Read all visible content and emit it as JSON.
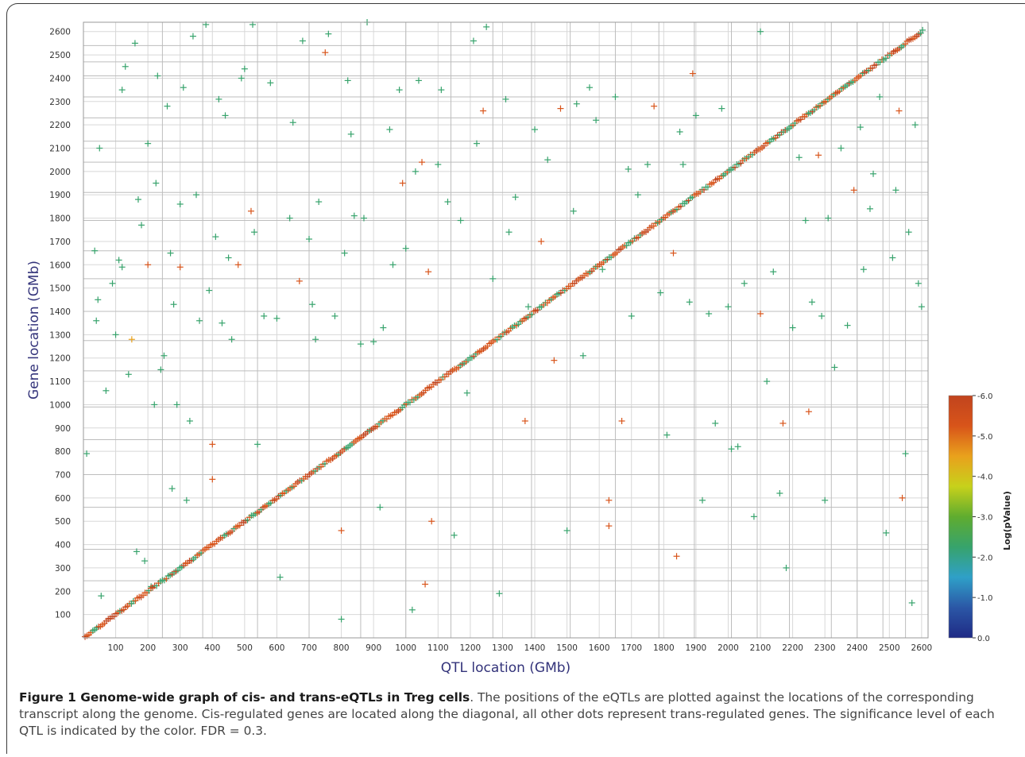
{
  "chart_data": {
    "type": "scatter",
    "xlabel": "QTL location (GMb)",
    "ylabel": "Gene location (GMb)",
    "xlim": [
      0,
      2620
    ],
    "ylim": [
      0,
      2640
    ],
    "x_ticks": [
      100,
      200,
      300,
      400,
      500,
      600,
      700,
      800,
      900,
      1000,
      1100,
      1200,
      1300,
      1400,
      1500,
      1600,
      1700,
      1800,
      1900,
      2000,
      2100,
      2200,
      2300,
      2400,
      2500,
      2600
    ],
    "y_ticks": [
      100,
      200,
      300,
      400,
      500,
      600,
      700,
      800,
      900,
      1000,
      1100,
      1200,
      1300,
      1400,
      1500,
      1600,
      1700,
      1800,
      1900,
      2000,
      2100,
      2200,
      2300,
      2400,
      2500,
      2600
    ],
    "chromosome_boundaries_x": [
      245,
      370,
      540,
      700,
      860,
      1000,
      1140,
      1270,
      1390,
      1510,
      1650,
      1785,
      1895,
      2010,
      2090,
      2190,
      2320,
      2400,
      2480,
      2550
    ],
    "chromosome_boundaries_y": [
      245,
      380,
      560,
      700,
      850,
      990,
      1145,
      1275,
      1400,
      1540,
      1660,
      1790,
      1910,
      2040,
      2130,
      2230,
      2320,
      2410,
      2470,
      2540
    ],
    "grid": true,
    "marker": "+",
    "legend": "none",
    "colorbar": {
      "label": "Log(pValue)",
      "ticks": [
        "-6.0",
        "-5.0",
        "-4.0",
        "-3.0",
        "-2.0",
        "-1.0",
        "0.0"
      ],
      "range": [
        -6.0,
        0.0
      ],
      "colors": [
        "#c1441e",
        "#d8541a",
        "#e9a11c",
        "#c7d11b",
        "#5fac2f",
        "#37a36c",
        "#2fa0c8",
        "#2b57a6",
        "#1f2a85"
      ]
    },
    "diagonal_cis": {
      "description": "cis-eQTLs along diagonal y = x",
      "x_range": [
        5,
        2605
      ],
      "typical_log_pvalue": -5.5
    },
    "trans_points": [
      [
        10,
        790,
        -2.4
      ],
      [
        35,
        1660,
        -2.5
      ],
      [
        45,
        1450,
        -2.4
      ],
      [
        40,
        1360,
        -2.4
      ],
      [
        50,
        2100,
        -2.3
      ],
      [
        55,
        180,
        -2.5
      ],
      [
        70,
        1060,
        -2.4
      ],
      [
        90,
        1520,
        -2.5
      ],
      [
        100,
        1300,
        -2.4
      ],
      [
        110,
        1620,
        -2.5
      ],
      [
        120,
        1590,
        -2.4
      ],
      [
        120,
        2350,
        -2.5
      ],
      [
        130,
        2450,
        -2.4
      ],
      [
        140,
        1130,
        -2.4
      ],
      [
        150,
        1280,
        -4.8
      ],
      [
        160,
        2550,
        -2.6
      ],
      [
        165,
        370,
        -2.5
      ],
      [
        170,
        1880,
        -2.4
      ],
      [
        180,
        1770,
        -2.5
      ],
      [
        190,
        330,
        -2.4
      ],
      [
        200,
        1600,
        -5.2
      ],
      [
        200,
        2120,
        -2.4
      ],
      [
        210,
        220,
        -2.6
      ],
      [
        220,
        1000,
        -2.5
      ],
      [
        225,
        1950,
        -2.5
      ],
      [
        230,
        2410,
        -2.4
      ],
      [
        240,
        1150,
        -2.4
      ],
      [
        250,
        1210,
        -2.5
      ],
      [
        260,
        2280,
        -2.5
      ],
      [
        270,
        1650,
        -2.4
      ],
      [
        275,
        640,
        -2.5
      ],
      [
        280,
        1430,
        -2.5
      ],
      [
        290,
        1000,
        -2.4
      ],
      [
        300,
        1860,
        -2.5
      ],
      [
        300,
        1590,
        -5.2
      ],
      [
        310,
        2360,
        -2.4
      ],
      [
        320,
        590,
        -2.5
      ],
      [
        330,
        930,
        -2.4
      ],
      [
        340,
        2580,
        -2.4
      ],
      [
        350,
        1900,
        -2.5
      ],
      [
        360,
        1360,
        -2.4
      ],
      [
        380,
        2630,
        -2.4
      ],
      [
        390,
        1490,
        -2.5
      ],
      [
        400,
        680,
        -5.3
      ],
      [
        400,
        830,
        -5.0
      ],
      [
        410,
        1720,
        -2.4
      ],
      [
        420,
        2310,
        -2.4
      ],
      [
        430,
        1350,
        -2.5
      ],
      [
        440,
        2240,
        -2.4
      ],
      [
        450,
        1630,
        -2.4
      ],
      [
        460,
        1280,
        -2.4
      ],
      [
        480,
        1600,
        -5.3
      ],
      [
        490,
        2400,
        -2.4
      ],
      [
        500,
        2440,
        -2.4
      ],
      [
        520,
        1830,
        -5.4
      ],
      [
        525,
        2630,
        -2.5
      ],
      [
        530,
        1740,
        -2.4
      ],
      [
        540,
        830,
        -2.5
      ],
      [
        560,
        1380,
        -2.5
      ],
      [
        580,
        2380,
        -2.4
      ],
      [
        600,
        1370,
        -2.5
      ],
      [
        610,
        260,
        -2.4
      ],
      [
        640,
        1800,
        -2.4
      ],
      [
        650,
        2210,
        -2.5
      ],
      [
        670,
        1530,
        -5.3
      ],
      [
        680,
        2560,
        -2.4
      ],
      [
        700,
        1710,
        -2.5
      ],
      [
        710,
        1430,
        -2.4
      ],
      [
        720,
        1280,
        -2.4
      ],
      [
        730,
        1870,
        -2.5
      ],
      [
        750,
        2510,
        -5.4
      ],
      [
        760,
        2590,
        -2.6
      ],
      [
        780,
        1380,
        -2.4
      ],
      [
        800,
        80,
        -2.5
      ],
      [
        800,
        460,
        -5.3
      ],
      [
        810,
        1650,
        -2.4
      ],
      [
        820,
        2390,
        -2.4
      ],
      [
        830,
        2160,
        -2.5
      ],
      [
        840,
        1810,
        -2.4
      ],
      [
        860,
        1260,
        -2.5
      ],
      [
        870,
        1800,
        -2.5
      ],
      [
        880,
        2640,
        -2.4
      ],
      [
        900,
        1270,
        -2.4
      ],
      [
        920,
        560,
        -2.4
      ],
      [
        930,
        1330,
        -2.4
      ],
      [
        950,
        2180,
        -2.5
      ],
      [
        960,
        1600,
        -2.4
      ],
      [
        980,
        2350,
        -2.5
      ],
      [
        990,
        1950,
        -5.3
      ],
      [
        1000,
        1670,
        -2.5
      ],
      [
        1020,
        120,
        -2.4
      ],
      [
        1030,
        2000,
        -2.5
      ],
      [
        1040,
        2390,
        -2.4
      ],
      [
        1050,
        2040,
        -5.2
      ],
      [
        1060,
        230,
        -5.4
      ],
      [
        1070,
        1570,
        -5.3
      ],
      [
        1080,
        500,
        -5.4
      ],
      [
        1100,
        2030,
        -2.4
      ],
      [
        1110,
        2350,
        -2.4
      ],
      [
        1130,
        1870,
        -2.5
      ],
      [
        1150,
        440,
        -2.4
      ],
      [
        1170,
        1790,
        -2.4
      ],
      [
        1190,
        1050,
        -2.5
      ],
      [
        1210,
        2560,
        -2.4
      ],
      [
        1220,
        2120,
        -2.5
      ],
      [
        1240,
        2260,
        -5.3
      ],
      [
        1250,
        2620,
        -2.4
      ],
      [
        1270,
        1540,
        -2.5
      ],
      [
        1290,
        190,
        -2.4
      ],
      [
        1310,
        2310,
        -2.5
      ],
      [
        1320,
        1740,
        -2.4
      ],
      [
        1340,
        1890,
        -2.5
      ],
      [
        1370,
        930,
        -5.3
      ],
      [
        1380,
        1420,
        -2.4
      ],
      [
        1400,
        2180,
        -2.4
      ],
      [
        1420,
        1700,
        -5.4
      ],
      [
        1440,
        2050,
        -2.4
      ],
      [
        1460,
        1190,
        -5.3
      ],
      [
        1480,
        2270,
        -5.4
      ],
      [
        1500,
        460,
        -2.5
      ],
      [
        1520,
        1830,
        -2.5
      ],
      [
        1530,
        2290,
        -2.4
      ],
      [
        1550,
        1210,
        -2.4
      ],
      [
        1570,
        2360,
        -2.5
      ],
      [
        1590,
        2220,
        -2.4
      ],
      [
        1610,
        1580,
        -2.5
      ],
      [
        1630,
        590,
        -5.4
      ],
      [
        1630,
        480,
        -5.2
      ],
      [
        1650,
        2320,
        -2.4
      ],
      [
        1670,
        930,
        -5.3
      ],
      [
        1690,
        2010,
        -2.4
      ],
      [
        1700,
        1380,
        -2.5
      ],
      [
        1720,
        1900,
        -2.4
      ],
      [
        1750,
        2030,
        -2.4
      ],
      [
        1770,
        2280,
        -5.4
      ],
      [
        1790,
        1480,
        -2.5
      ],
      [
        1810,
        870,
        -2.4
      ],
      [
        1830,
        1650,
        -5.2
      ],
      [
        1840,
        350,
        -5.3
      ],
      [
        1850,
        2170,
        -2.4
      ],
      [
        1860,
        2030,
        -2.5
      ],
      [
        1880,
        1440,
        -2.4
      ],
      [
        1890,
        2420,
        -5.5
      ],
      [
        1900,
        2240,
        -2.4
      ],
      [
        1920,
        590,
        -2.5
      ],
      [
        1940,
        1390,
        -2.4
      ],
      [
        1960,
        920,
        -2.4
      ],
      [
        1980,
        2270,
        -2.5
      ],
      [
        2000,
        1420,
        -2.4
      ],
      [
        2010,
        810,
        -2.4
      ],
      [
        2030,
        820,
        -2.5
      ],
      [
        2050,
        1520,
        -2.4
      ],
      [
        2080,
        520,
        -2.5
      ],
      [
        2100,
        1390,
        -5.3
      ],
      [
        2100,
        2600,
        -2.4
      ],
      [
        2120,
        1100,
        -2.4
      ],
      [
        2140,
        1570,
        -2.5
      ],
      [
        2160,
        620,
        -2.4
      ],
      [
        2170,
        920,
        -5.4
      ],
      [
        2180,
        300,
        -2.4
      ],
      [
        2200,
        1330,
        -2.5
      ],
      [
        2220,
        2060,
        -2.4
      ],
      [
        2240,
        1790,
        -2.4
      ],
      [
        2250,
        970,
        -5.4
      ],
      [
        2260,
        1440,
        -2.4
      ],
      [
        2280,
        2070,
        -5.3
      ],
      [
        2290,
        1380,
        -2.5
      ],
      [
        2300,
        590,
        -2.4
      ],
      [
        2310,
        1800,
        -2.4
      ],
      [
        2330,
        1160,
        -2.4
      ],
      [
        2350,
        2100,
        -2.5
      ],
      [
        2370,
        1340,
        -2.4
      ],
      [
        2390,
        1920,
        -5.2
      ],
      [
        2410,
        2190,
        -2.4
      ],
      [
        2420,
        1580,
        -2.5
      ],
      [
        2440,
        1840,
        -2.4
      ],
      [
        2450,
        1990,
        -2.5
      ],
      [
        2470,
        2320,
        -2.4
      ],
      [
        2490,
        450,
        -2.5
      ],
      [
        2510,
        1630,
        -2.5
      ],
      [
        2520,
        1920,
        -2.4
      ],
      [
        2530,
        2260,
        -5.3
      ],
      [
        2540,
        600,
        -5.2
      ],
      [
        2550,
        790,
        -2.4
      ],
      [
        2560,
        1740,
        -2.5
      ],
      [
        2570,
        150,
        -2.4
      ],
      [
        2580,
        2200,
        -2.5
      ],
      [
        2590,
        1520,
        -2.4
      ],
      [
        2600,
        1420,
        -2.4
      ]
    ]
  },
  "caption": {
    "bold": "Figure 1 Genome-wide graph of cis- and trans-eQTLs in Treg cells",
    "text": ". The positions of the eQTLs are plotted against the locations of the corresponding transcript along the genome. Cis-regulated genes are located along the diagonal, all other dots represent trans-regulated genes. The significance level of each QTL is indicated by the color. FDR = 0.3."
  }
}
